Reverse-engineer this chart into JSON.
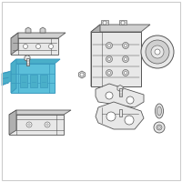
{
  "background_color": "#ffffff",
  "hl_color": "#5bbfda",
  "hl_dark": "#3a9abf",
  "hl_mid": "#4aafc9",
  "line_color": "#555555",
  "fill_gray": "#e8e8e8",
  "mid_gray": "#d0d0d0",
  "dark_gray": "#b0b0b0",
  "figsize": [
    2.0,
    2.0
  ],
  "dpi": 100
}
